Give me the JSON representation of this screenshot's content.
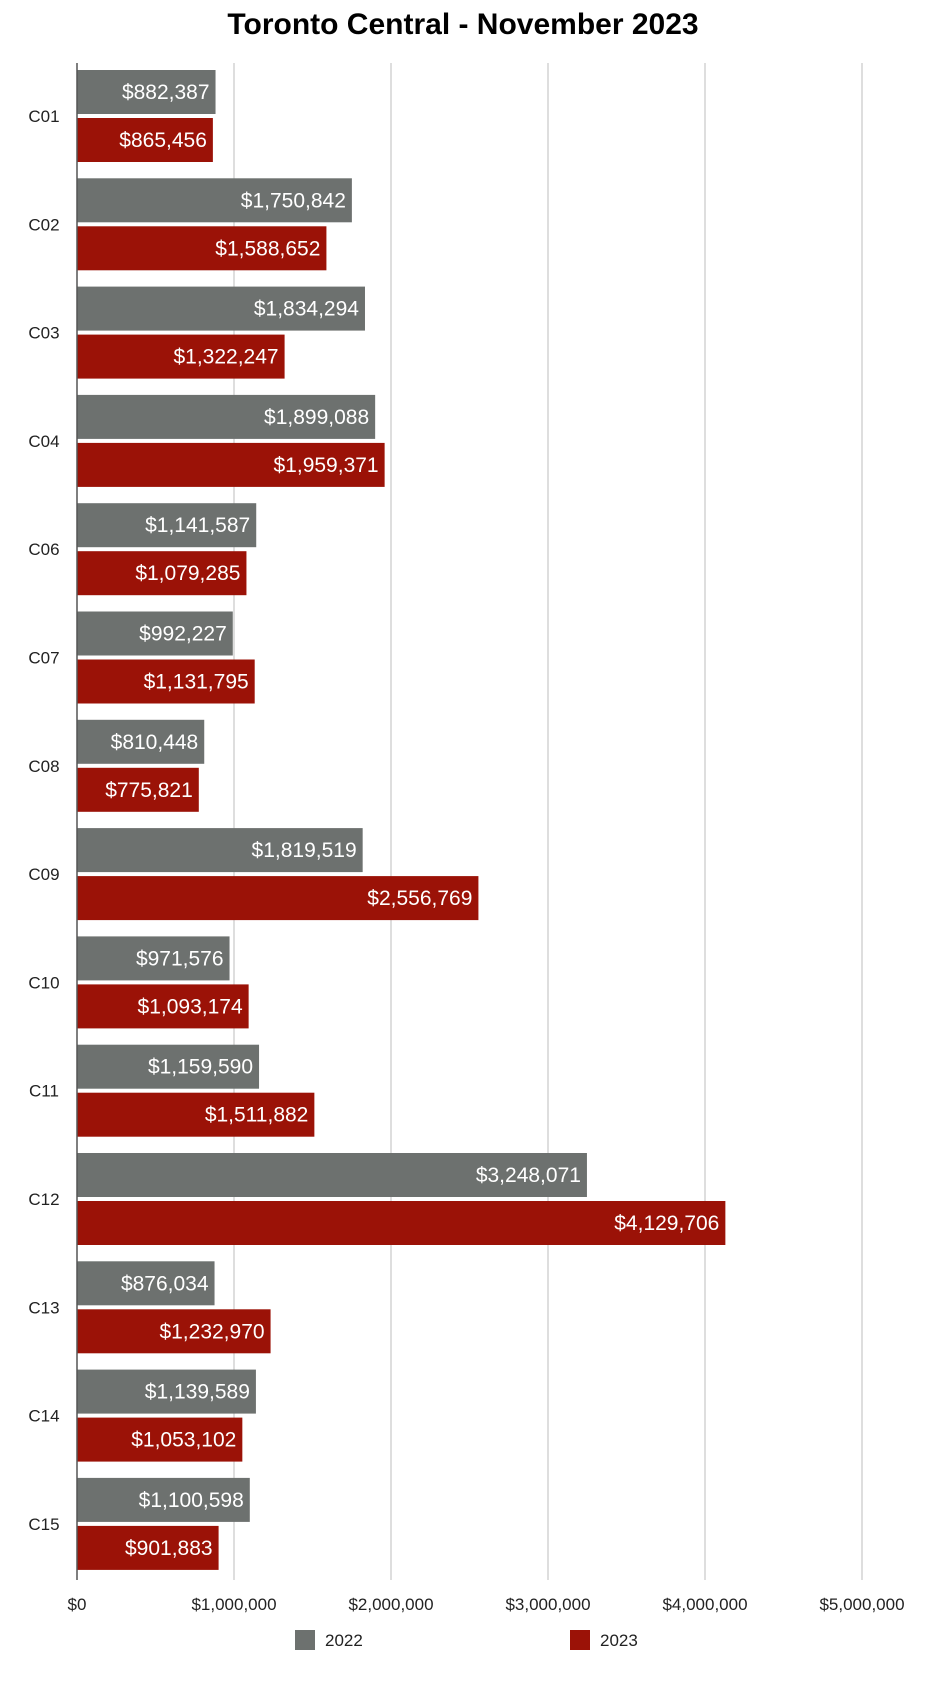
{
  "chart_data": {
    "type": "bar",
    "orientation": "horizontal",
    "title": "Toronto Central - November 2023",
    "xlabel": "",
    "ylabel": "",
    "xlim": [
      0,
      5000000
    ],
    "x_ticks": [
      0,
      1000000,
      2000000,
      3000000,
      4000000,
      5000000
    ],
    "x_tick_labels": [
      "$0",
      "$1,000,000",
      "$2,000,000",
      "$3,000,000",
      "$4,000,000",
      "$5,000,000"
    ],
    "grid": "vertical",
    "legend_position": "bottom",
    "categories": [
      "C01",
      "C02",
      "C03",
      "C04",
      "C06",
      "C07",
      "C08",
      "C09",
      "C10",
      "C11",
      "C12",
      "C13",
      "C14",
      "C15"
    ],
    "series": [
      {
        "name": "2022",
        "color": "#6d716f",
        "values": [
          882387,
          1750842,
          1834294,
          1899088,
          1141587,
          992227,
          810448,
          1819519,
          971576,
          1159590,
          3248071,
          876034,
          1139589,
          1100598
        ],
        "labels": [
          "$882,387",
          "$1,750,842",
          "$1,834,294",
          "$1,899,088",
          "$1,141,587",
          "$992,227",
          "$810,448",
          "$1,819,519",
          "$971,576",
          "$1,159,590",
          "$3,248,071",
          "$876,034",
          "$1,139,589",
          "$1,100,598"
        ]
      },
      {
        "name": "2023",
        "color": "#9b1207",
        "values": [
          865456,
          1588652,
          1322247,
          1959371,
          1079285,
          1131795,
          775821,
          2556769,
          1093174,
          1511882,
          4129706,
          1232970,
          1053102,
          901883
        ],
        "labels": [
          "$865,456",
          "$1,588,652",
          "$1,322,247",
          "$1,959,371",
          "$1,079,285",
          "$1,131,795",
          "$775,821",
          "$2,556,769",
          "$1,093,174",
          "$1,511,882",
          "$4,129,706",
          "$1,232,970",
          "$1,053,102",
          "$901,883"
        ]
      }
    ]
  }
}
